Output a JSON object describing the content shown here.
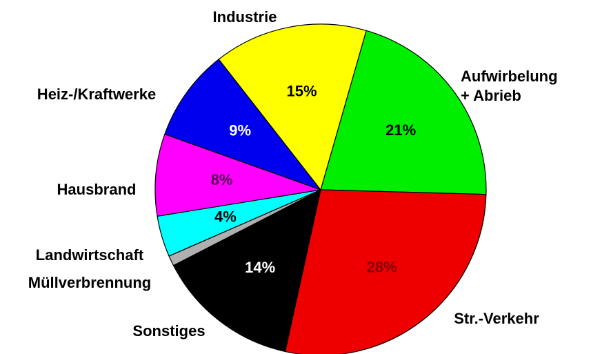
{
  "chart_data": {
    "type": "pie",
    "categories": [
      "Aufwirbelung\n+ Abrieb",
      "Str.-Verkehr",
      "Sonstiges",
      "Müllverbrennung",
      "Landwirtschaft",
      "Hausbrand",
      "Heiz-/Kraftwerke",
      "Industrie"
    ],
    "values": [
      21,
      28,
      14,
      1,
      4,
      8,
      9,
      15
    ],
    "value_labels": [
      "21%",
      "28%",
      "14%",
      null,
      "4%",
      "8%",
      "9%",
      "15%"
    ],
    "colors": [
      "#00ee00",
      "#ee0000",
      "#000000",
      "#b0b0b0",
      "#00ffff",
      "#ff00ff",
      "#0000ee",
      "#ffff00"
    ],
    "label_colors": [
      "#000000",
      "#800000",
      "#ffffff",
      "#000000",
      "#000000",
      "#500050",
      "#ffffff",
      "#000000"
    ]
  }
}
